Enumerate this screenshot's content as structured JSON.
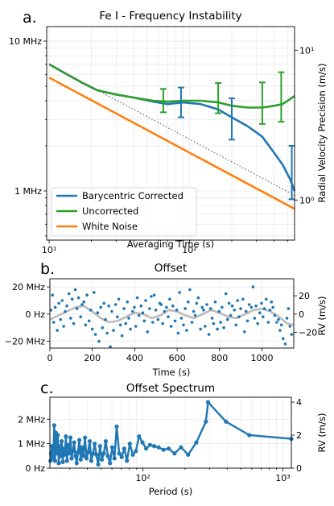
{
  "colors": {
    "blue": "#1f77b4",
    "green": "#2ca02c",
    "orange": "#ff7f0e",
    "grey": "#bbbbbb",
    "dotted": "#666666"
  },
  "panel_labels": [
    "a.",
    "b.",
    "c."
  ],
  "chart_data": [
    {
      "type": "line",
      "title": "Fe I - Frequency Instability",
      "xlabel": "Averaging Time (s)",
      "ylabel": "",
      "ylabel_right": "Radial Velocity Precision (m/s)",
      "xscale": "log",
      "yscale": "log",
      "xlim": [
        9.6,
        560
      ],
      "ylim_hz": [
        470000,
        12500000
      ],
      "xticks": [
        {
          "v": 10,
          "label": "10¹"
        },
        {
          "v": 100,
          "label": "10²"
        }
      ],
      "yticks": [
        {
          "v": 10000000,
          "label": "10 MHz"
        },
        {
          "v": 1000000,
          "label": "1 MHz"
        }
      ],
      "yticks_right": [
        {
          "v": 8700000,
          "label": "10¹"
        },
        {
          "v": 870000,
          "label": "10⁰"
        }
      ],
      "grid": true,
      "legend": {
        "placement": "lower-left",
        "entries": [
          {
            "label": "Barycentric Corrected",
            "color": "#1f77b4"
          },
          {
            "label": "Uncorrected",
            "color": "#2ca02c"
          },
          {
            "label": "White Noise",
            "color": "#ff7f0e"
          }
        ]
      },
      "series": [
        {
          "name": "Barycentric Corrected",
          "color": "#1f77b4",
          "x": [
            10,
            13,
            17,
            22,
            30,
            40,
            55,
            70,
            90,
            120,
            160,
            200,
            260,
            330,
            400,
            460,
            520,
            560
          ],
          "y": [
            7000000,
            6100000,
            5300000,
            4700000,
            4400000,
            4200000,
            3950000,
            3800000,
            3900000,
            3800000,
            3500000,
            3100000,
            2700000,
            2300000,
            1800000,
            1500000,
            1200000,
            1000000
          ]
        },
        {
          "name": "Uncorrected",
          "color": "#2ca02c",
          "x": [
            10,
            13,
            17,
            22,
            30,
            40,
            55,
            70,
            90,
            120,
            160,
            200,
            260,
            330,
            400,
            460,
            520,
            560
          ],
          "y": [
            7000000,
            6100000,
            5300000,
            4700000,
            4400000,
            4200000,
            4000000,
            3950000,
            4000000,
            4000000,
            3900000,
            3700000,
            3600000,
            3600000,
            3700000,
            3800000,
            4100000,
            4300000
          ]
        },
        {
          "name": "White Noise",
          "color": "#ff7f0e",
          "x": [
            10,
            560
          ],
          "y": [
            5700000,
            760000
          ]
        },
        {
          "name": "",
          "style": "dotted",
          "color": "#666666",
          "x": [
            10,
            560
          ],
          "y": [
            7000000,
            934000
          ]
        }
      ],
      "error_bars": [
        {
          "color": "#2ca02c",
          "x": 65,
          "y": 4000000,
          "lo": 3350000,
          "hi": 4800000
        },
        {
          "color": "#1f77b4",
          "x": 87,
          "y": 3900000,
          "lo": 3100000,
          "hi": 4900000
        },
        {
          "color": "#2ca02c",
          "x": 160,
          "y": 4000000,
          "lo": 3300000,
          "hi": 5250000
        },
        {
          "color": "#1f77b4",
          "x": 200,
          "y": 3200000,
          "lo": 2200000,
          "hi": 4150000
        },
        {
          "color": "#2ca02c",
          "x": 330,
          "y": 3900000,
          "lo": 2800000,
          "hi": 5300000
        },
        {
          "color": "#2ca02c",
          "x": 450,
          "y": 4300000,
          "lo": 2900000,
          "hi": 6200000
        },
        {
          "color": "#1f77b4",
          "x": 535,
          "y": 1350000,
          "lo": 880000,
          "hi": 2000000
        }
      ]
    },
    {
      "type": "scatter",
      "title": "Offset",
      "xlabel": "Time (s)",
      "ylabel": "",
      "ylabel_right": "RV (m/s)",
      "xlim": [
        0,
        1150
      ],
      "ylim_mhz": [
        -25,
        26
      ],
      "xticks": [
        0,
        200,
        400,
        600,
        800,
        1000
      ],
      "yticks": [
        {
          "v": 20,
          "label": "20 MHz"
        },
        {
          "v": 0,
          "label": "0 Hz"
        },
        {
          "v": -20,
          "label": "−20 MHz"
        }
      ],
      "yticks_right": [
        {
          "v": 13.5,
          "label": "20"
        },
        {
          "v": 0,
          "label": "0"
        },
        {
          "v": -13.5,
          "label": "−20"
        }
      ],
      "grid": true,
      "points": {
        "name": "",
        "color": "#1f77b4",
        "x": [
          5,
          12,
          18,
          25,
          35,
          42,
          50,
          58,
          65,
          72,
          80,
          90,
          98,
          105,
          112,
          120,
          128,
          135,
          145,
          152,
          160,
          168,
          175,
          185,
          192,
          200,
          208,
          215,
          225,
          232,
          240,
          248,
          255,
          262,
          270,
          278,
          285,
          292,
          300,
          310,
          318,
          325,
          333,
          340,
          350,
          358,
          365,
          372,
          380,
          390,
          398,
          405,
          412,
          420,
          430,
          438,
          445,
          452,
          460,
          470,
          478,
          485,
          492,
          500,
          510,
          518,
          525,
          532,
          540,
          550,
          558,
          565,
          572,
          580,
          590,
          598,
          605,
          612,
          620,
          630,
          638,
          645,
          652,
          660,
          670,
          678,
          685,
          692,
          700,
          710,
          718,
          725,
          732,
          740,
          750,
          758,
          765,
          772,
          780,
          790,
          798,
          805,
          812,
          820,
          830,
          838,
          845,
          852,
          860,
          870,
          878,
          885,
          892,
          900,
          910,
          918,
          925,
          932,
          940,
          950,
          958,
          965,
          972,
          980,
          990,
          998,
          1005,
          1012,
          1020,
          1030,
          1038,
          1045,
          1052,
          1060,
          1070,
          1078,
          1085,
          1092,
          1100,
          1110,
          1118,
          1125,
          1132,
          1140
        ],
        "y": [
          3,
          14,
          -6,
          5,
          -12,
          8,
          -4,
          10,
          -9,
          2,
          6,
          15,
          -3,
          11,
          -7,
          18,
          4,
          12,
          -2,
          7,
          9,
          -8,
          14,
          -5,
          3,
          -11,
          16,
          -15,
          1,
          -20,
          5,
          -10,
          8,
          -4,
          -14,
          6,
          -24,
          2,
          -12,
          7,
          -2,
          11,
          -8,
          -16,
          4,
          -7,
          9,
          -3,
          -11,
          2,
          5,
          -9,
          12,
          -1,
          6,
          1,
          -5,
          10,
          -13,
          4,
          13,
          -6,
          14,
          3,
          -4,
          8,
          7,
          -7,
          2,
          5,
          -2,
          11,
          -9,
          6,
          -5,
          3,
          -14,
          16,
          -3,
          -8,
          4,
          -12,
          9,
          18,
          -6,
          2,
          -1,
          8,
          12,
          -11,
          5,
          3,
          -9,
          7,
          -15,
          4,
          -3,
          -7,
          9,
          -11,
          2,
          -6,
          5,
          -10,
          15,
          -4,
          8,
          -1,
          6,
          3,
          -8,
          10,
          -2,
          4,
          11,
          -13,
          2,
          -5,
          7,
          5,
          20,
          -3,
          6,
          -7,
          1,
          8,
          -2,
          4,
          11,
          -6,
          3,
          9,
          5,
          -1,
          -6,
          -4,
          -12,
          -8,
          -18,
          -22,
          -3,
          4,
          -9,
          -15
        ]
      },
      "series": [
        {
          "name": "",
          "color": "#bbbbbb",
          "x": [
            0,
            40,
            80,
            120,
            160,
            200,
            240,
            280,
            320,
            360,
            400,
            440,
            480,
            520,
            560,
            600,
            640,
            680,
            720,
            760,
            800,
            840,
            880,
            920,
            960,
            1000,
            1040,
            1080,
            1120,
            1150
          ],
          "y": [
            -4,
            -1,
            2,
            5,
            6,
            2,
            -3,
            -6,
            -5,
            -2,
            1,
            0,
            -3,
            -1,
            3,
            2,
            -1,
            -3,
            0,
            3,
            1,
            -2,
            -3,
            0,
            3,
            4,
            2,
            -2,
            -7,
            -8
          ]
        }
      ]
    },
    {
      "type": "line",
      "title": "Offset Spectrum",
      "xlabel": "Period (s)",
      "ylabel": "",
      "ylabel_right": "RV (m/s)",
      "xscale": "log",
      "xlim": [
        21.6,
        1150
      ],
      "ylim_mhz": [
        0,
        2.9
      ],
      "xticks": [
        {
          "v": 100,
          "label": "10²"
        },
        {
          "v": 1000,
          "label": "10³"
        }
      ],
      "yticks": [
        {
          "v": 2,
          "label": "2 MHz"
        },
        {
          "v": 1,
          "label": "1 MHz"
        },
        {
          "v": 0,
          "label": "0 Hz"
        }
      ],
      "yticks_right": [
        {
          "v": 2.7,
          "label": "4"
        },
        {
          "v": 1.35,
          "label": "2"
        },
        {
          "v": 0,
          "label": "0"
        }
      ],
      "grid": true,
      "series": [
        {
          "name": "",
          "color": "#1f77b4",
          "x": [
            21.8,
            22,
            22.3,
            22.6,
            22.9,
            23.2,
            23.5,
            23.8,
            24.2,
            24.6,
            25,
            25.4,
            25.8,
            26.2,
            26.7,
            27.1,
            27.6,
            28.1,
            28.6,
            29.1,
            29.7,
            30.3,
            30.9,
            31.5,
            32.2,
            32.9,
            33.6,
            34.3,
            35.1,
            35.9,
            36.7,
            37.6,
            38.5,
            39.5,
            40.5,
            41.6,
            42.7,
            43.9,
            45.1,
            46.4,
            47.8,
            49.3,
            50.8,
            52.5,
            54.2,
            56.1,
            58.1,
            60.2,
            62.5,
            64.9,
            67.6,
            70.4,
            73.5,
            76.8,
            80.5,
            84.5,
            88.9,
            93.8,
            99.3,
            105.4,
            112.3,
            120.2,
            129.4,
            140,
            152.7,
            168,
            186.9,
            210.5,
            240.8,
            281.6,
            292,
            392,
            575,
            1150
          ],
          "y": [
            0.3,
            0.6,
            0.9,
            0.4,
            0.75,
            1.75,
            0.3,
            1.45,
            0.6,
            1.35,
            0.2,
            0.9,
            0.5,
            1.1,
            0.25,
            0.8,
            0.55,
            1.3,
            0.3,
            0.95,
            0.6,
            1.25,
            0.4,
            0.7,
            1.05,
            0.5,
            0.2,
            0.65,
            1.15,
            0.35,
            0.85,
            0.5,
            1.25,
            0.4,
            0.65,
            1.1,
            0.3,
            0.6,
            1.0,
            0.55,
            0.15,
            0.9,
            0.35,
            0.6,
            1.1,
            0.5,
            0.2,
            0.85,
            0.4,
            1.7,
            0.6,
            0.45,
            0.8,
            0.3,
            1.0,
            0.55,
            0.7,
            1.3,
            1.05,
            0.8,
            0.95,
            0.9,
            0.85,
            0.75,
            0.8,
            0.6,
            0.85,
            0.55,
            1.05,
            1.9,
            2.7,
            1.9,
            1.35,
            1.2
          ]
        }
      ]
    }
  ]
}
